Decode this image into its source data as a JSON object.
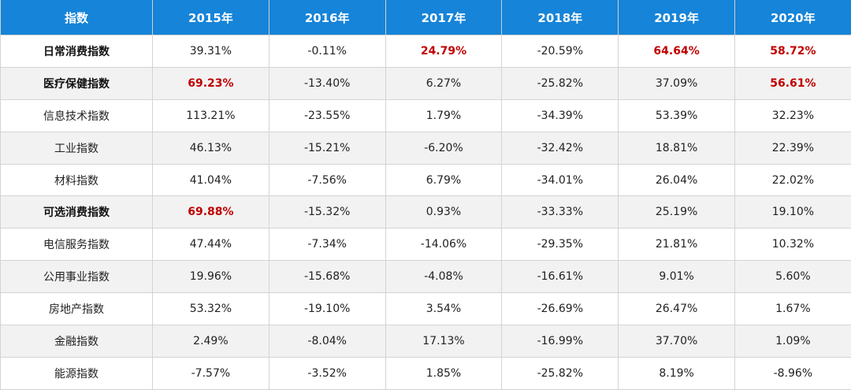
{
  "chart_data": {
    "type": "table",
    "columns": [
      "指数",
      "2015年",
      "2016年",
      "2017年",
      "2018年",
      "2019年",
      "2020年"
    ],
    "rows": [
      {
        "name": "日常消费指数",
        "bold": true,
        "values": [
          "39.31%",
          "-0.11%",
          "24.79%",
          "-20.59%",
          "64.64%",
          "58.72%"
        ],
        "highlight": [
          false,
          false,
          true,
          false,
          true,
          true
        ]
      },
      {
        "name": "医疗保健指数",
        "bold": true,
        "values": [
          "69.23%",
          "-13.40%",
          "6.27%",
          "-25.82%",
          "37.09%",
          "56.61%"
        ],
        "highlight": [
          true,
          false,
          false,
          false,
          false,
          true
        ]
      },
      {
        "name": "信息技术指数",
        "bold": false,
        "values": [
          "113.21%",
          "-23.55%",
          "1.79%",
          "-34.39%",
          "53.39%",
          "32.23%"
        ],
        "highlight": [
          false,
          false,
          false,
          false,
          false,
          false
        ]
      },
      {
        "name": "工业指数",
        "bold": false,
        "values": [
          "46.13%",
          "-15.21%",
          "-6.20%",
          "-32.42%",
          "18.81%",
          "22.39%"
        ],
        "highlight": [
          false,
          false,
          false,
          false,
          false,
          false
        ]
      },
      {
        "name": "材料指数",
        "bold": false,
        "values": [
          "41.04%",
          "-7.56%",
          "6.79%",
          "-34.01%",
          "26.04%",
          "22.02%"
        ],
        "highlight": [
          false,
          false,
          false,
          false,
          false,
          false
        ]
      },
      {
        "name": "可选消费指数",
        "bold": true,
        "values": [
          "69.88%",
          "-15.32%",
          "0.93%",
          "-33.33%",
          "25.19%",
          "19.10%"
        ],
        "highlight": [
          true,
          false,
          false,
          false,
          false,
          false
        ]
      },
      {
        "name": "电信服务指数",
        "bold": false,
        "values": [
          "47.44%",
          "-7.34%",
          "-14.06%",
          "-29.35%",
          "21.81%",
          "10.32%"
        ],
        "highlight": [
          false,
          false,
          false,
          false,
          false,
          false
        ]
      },
      {
        "name": "公用事业指数",
        "bold": false,
        "values": [
          "19.96%",
          "-15.68%",
          "-4.08%",
          "-16.61%",
          "9.01%",
          "5.60%"
        ],
        "highlight": [
          false,
          false,
          false,
          false,
          false,
          false
        ]
      },
      {
        "name": "房地产指数",
        "bold": false,
        "values": [
          "53.32%",
          "-19.10%",
          "3.54%",
          "-26.69%",
          "26.47%",
          "1.67%"
        ],
        "highlight": [
          false,
          false,
          false,
          false,
          false,
          false
        ]
      },
      {
        "name": "金融指数",
        "bold": false,
        "values": [
          "2.49%",
          "-8.04%",
          "17.13%",
          "-16.99%",
          "37.70%",
          "1.09%"
        ],
        "highlight": [
          false,
          false,
          false,
          false,
          false,
          false
        ]
      },
      {
        "name": "能源指数",
        "bold": false,
        "values": [
          "-7.57%",
          "-3.52%",
          "1.85%",
          "-25.82%",
          "8.19%",
          "-8.96%"
        ],
        "highlight": [
          false,
          false,
          false,
          false,
          false,
          false
        ]
      }
    ],
    "colors": {
      "header_bg": "#1684d8",
      "header_text": "#ffffff",
      "highlight": "#c00000",
      "stripe": "#f2f2f2"
    }
  }
}
